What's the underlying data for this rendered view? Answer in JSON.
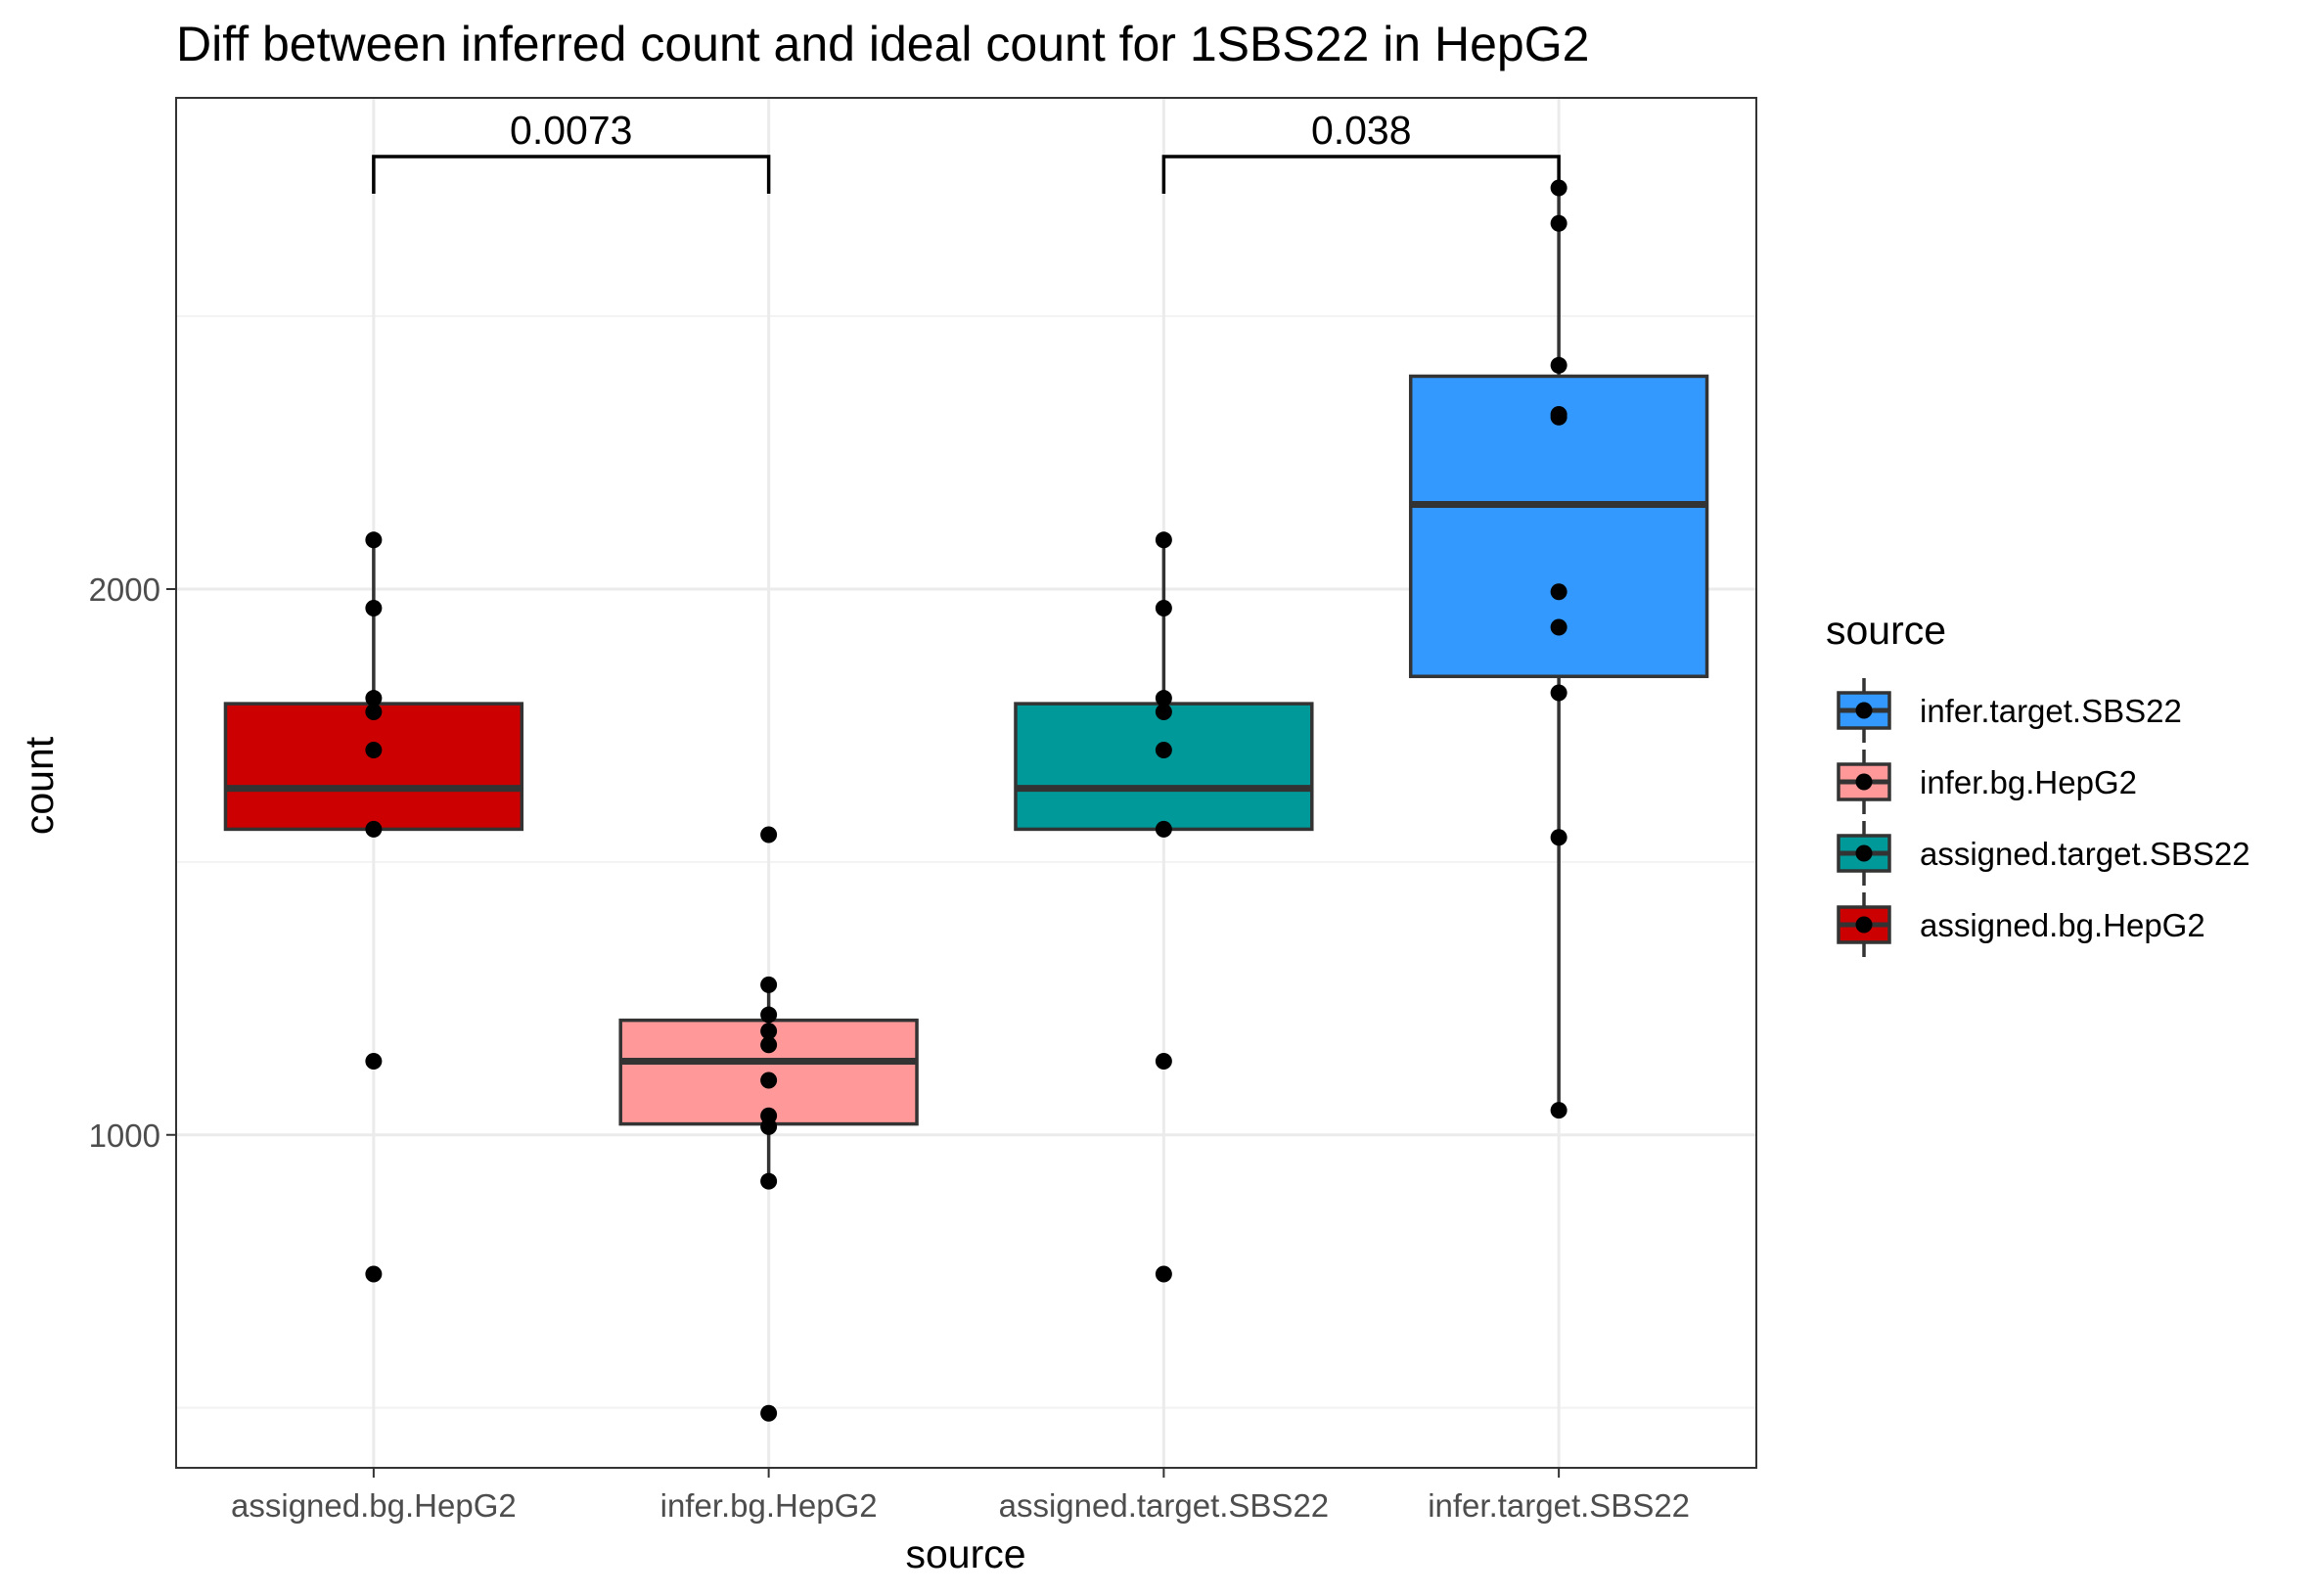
{
  "chart_data": {
    "type": "boxplot",
    "title": "Diff between inferred count and ideal count for 1SBS22 in HepG2",
    "xlabel": "source",
    "ylabel": "count",
    "ylim": [
      390,
      2900
    ],
    "yticks": [
      1000,
      2000
    ],
    "grid": true,
    "legend_placement": "right",
    "categories": [
      "assigned.bg.HepG2",
      "infer.bg.HepG2",
      "assigned.target.SBS22",
      "infer.target.SBS22"
    ],
    "series": [
      {
        "name": "assigned.bg.HepG2",
        "color": "#cc0000",
        "box": {
          "whisker_low": 1560,
          "q1": 1560,
          "median": 1635,
          "q3": 1790,
          "whisker_high": 2090
        },
        "points": [
          2090,
          1965,
          1800,
          1775,
          1705,
          1560,
          1135,
          745
        ]
      },
      {
        "name": "infer.bg.HepG2",
        "color": "#ff9999",
        "box": {
          "whisker_low": 915,
          "q1": 1020,
          "median": 1135,
          "q3": 1210,
          "whisker_high": 1285
        },
        "points": [
          1550,
          1275,
          1220,
          1190,
          1165,
          1100,
          1035,
          1015,
          915,
          490
        ]
      },
      {
        "name": "assigned.target.SBS22",
        "color": "#009999",
        "box": {
          "whisker_low": 1560,
          "q1": 1560,
          "median": 1635,
          "q3": 1790,
          "whisker_high": 2090
        },
        "points": [
          2090,
          1965,
          1800,
          1775,
          1705,
          1560,
          1135,
          745
        ]
      },
      {
        "name": "infer.target.SBS22",
        "color": "#3399ff",
        "box": {
          "whisker_low": 1045,
          "q1": 1840,
          "median": 2155,
          "q3": 2390,
          "whisker_high": 2735
        },
        "points": [
          2735,
          2670,
          2410,
          2320,
          2315,
          1995,
          1930,
          1810,
          1545,
          1045
        ]
      }
    ],
    "comparisons": [
      {
        "groups": [
          "assigned.bg.HepG2",
          "infer.bg.HepG2"
        ],
        "label": "0.0073"
      },
      {
        "groups": [
          "assigned.target.SBS22",
          "infer.target.SBS22"
        ],
        "label": "0.038"
      }
    ],
    "legend": {
      "title": "source",
      "entries": [
        "infer.target.SBS22",
        "infer.bg.HepG2",
        "assigned.target.SBS22",
        "assigned.bg.HepG2"
      ]
    }
  }
}
